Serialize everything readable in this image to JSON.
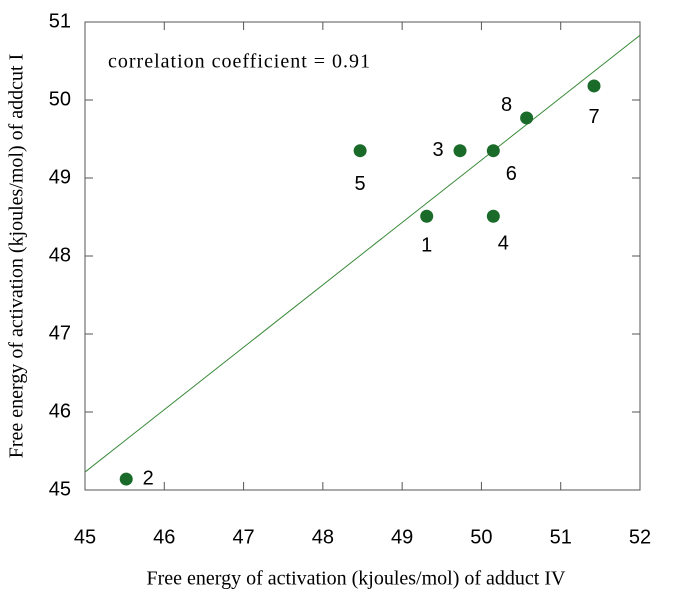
{
  "chart_data": {
    "type": "scatter",
    "xlabel": "Free energy of activation (kjoules/mol) of adduct IV",
    "ylabel": "Free energy of activation (kjoules/mol) of addcut I",
    "annotation": "correlation coefficient = 0.91",
    "point_labels": [
      "2",
      "5",
      "3",
      "6",
      "1",
      "4",
      "8",
      "7"
    ],
    "x": [
      45.52,
      48.47,
      49.73,
      50.15,
      49.31,
      50.15,
      50.57,
      51.42
    ],
    "values": [
      45.14,
      49.35,
      49.35,
      49.35,
      48.51,
      48.51,
      49.77,
      50.18
    ],
    "color": "#1a6b2a",
    "fit_line": {
      "x": [
        45,
        52
      ],
      "y": [
        45.23,
        50.83
      ],
      "color": "#3a8a3a"
    },
    "xlim": [
      45,
      52
    ],
    "xticks": [
      45,
      46,
      47,
      48,
      49,
      50,
      51,
      52
    ],
    "ylim": [
      45,
      51
    ],
    "yticks": [
      45,
      46,
      47,
      48,
      49,
      50,
      51
    ],
    "grid": false
  }
}
